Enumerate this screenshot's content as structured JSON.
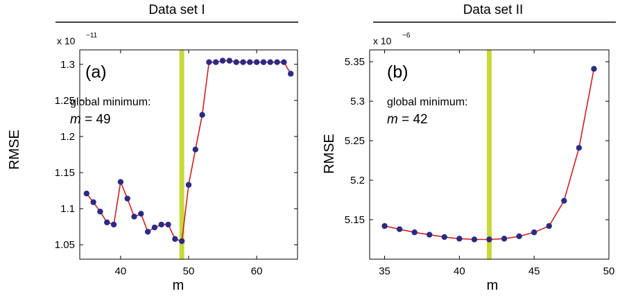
{
  "chart_data": [
    {
      "type": "line",
      "panel_title": "Data set I",
      "panel_label": "(a)",
      "annotation_line1": "global minimum:",
      "annotation_line2": "m = 49",
      "annotation_var": "m",
      "annotation_value": " = 49",
      "scale_base": "x 10",
      "scale_exponent": "−11",
      "xlabel": "m",
      "ylabel": "RMSE",
      "xlim": [
        34,
        66
      ],
      "ylim": [
        1.03,
        1.32
      ],
      "xticks": [
        40,
        50,
        60
      ],
      "yticks": [
        1.05,
        1.1,
        1.15,
        1.2,
        1.25,
        1.3
      ],
      "ytick_labels": [
        "1.05",
        "1.1",
        "1.15",
        "1.2",
        "1.25",
        "1.3"
      ],
      "highlight_x": 49,
      "grid": false,
      "series": [
        {
          "x": [
            35,
            36,
            37,
            38,
            39,
            40,
            41,
            42,
            43,
            44,
            45,
            46,
            47,
            48,
            49,
            50,
            51,
            52,
            53,
            54,
            55,
            56,
            57,
            58,
            59,
            60,
            61,
            62,
            63,
            64,
            65
          ],
          "values": [
            1.121,
            1.109,
            1.096,
            1.081,
            1.078,
            1.137,
            1.114,
            1.089,
            1.093,
            1.068,
            1.074,
            1.078,
            1.078,
            1.058,
            1.055,
            1.133,
            1.182,
            1.23,
            1.303,
            1.303,
            1.305,
            1.305,
            1.303,
            1.303,
            1.303,
            1.303,
            1.303,
            1.303,
            1.303,
            1.303,
            1.287
          ]
        }
      ]
    },
    {
      "type": "line",
      "panel_title": "Data set II",
      "panel_label": "(b)",
      "annotation_line1": "global minimum:",
      "annotation_line2": "m = 42",
      "annotation_var": "m",
      "annotation_value": " = 42",
      "scale_base": "x 10",
      "scale_exponent": "−6",
      "xlabel": "m",
      "ylabel": "RMSE",
      "xlim": [
        34,
        50
      ],
      "ylim": [
        5.1,
        5.365
      ],
      "xticks": [
        35,
        40,
        45,
        50
      ],
      "yticks": [
        5.15,
        5.2,
        5.25,
        5.3,
        5.35
      ],
      "ytick_labels": [
        "5.15",
        "5.2",
        "5.25",
        "5.3",
        "5.35"
      ],
      "highlight_x": 42,
      "grid": false,
      "series": [
        {
          "x": [
            35,
            36,
            37,
            38,
            39,
            40,
            41,
            42,
            43,
            44,
            45,
            46,
            47,
            48,
            49
          ],
          "values": [
            5.142,
            5.138,
            5.134,
            5.131,
            5.128,
            5.126,
            5.125,
            5.125,
            5.126,
            5.129,
            5.134,
            5.142,
            5.174,
            5.241,
            5.341
          ]
        }
      ]
    }
  ],
  "colors": {
    "line": "#cc1f1f",
    "marker": "#2b2b86",
    "highlight": "#c9d83c",
    "axis": "#000000"
  }
}
